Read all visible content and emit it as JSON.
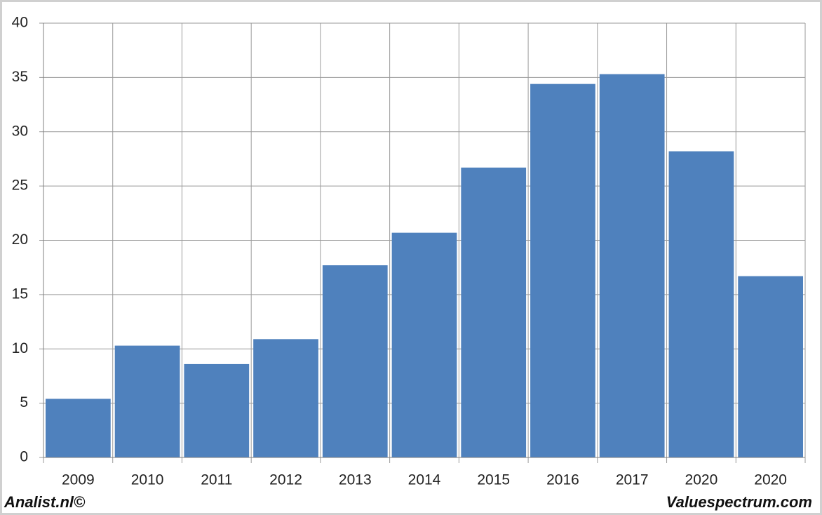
{
  "chart_data": {
    "type": "bar",
    "categories": [
      "2009",
      "2010",
      "2011",
      "2012",
      "2013",
      "2014",
      "2015",
      "2016",
      "2017",
      "2020",
      "2020"
    ],
    "values": [
      5.4,
      10.3,
      8.6,
      10.9,
      17.7,
      20.7,
      26.7,
      34.4,
      35.3,
      28.2,
      16.7
    ],
    "color": "#4f81bd",
    "ylim": [
      0,
      40
    ],
    "yticks": [
      0,
      5,
      10,
      15,
      20,
      25,
      30,
      35,
      40
    ],
    "grid": true,
    "credit_left": "Analist.nl©",
    "credit_right": "Valuespectrum.com"
  }
}
